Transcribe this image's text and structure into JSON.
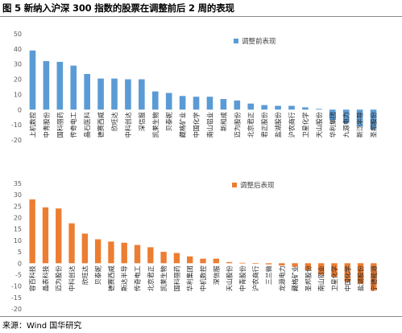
{
  "title": "图 5  新纳入沪深 300 指数的股票在调整前后 2 周的表现",
  "source": "来源：Wind  国华研究",
  "chart_data": [
    {
      "type": "bar",
      "legend": "调整前表现",
      "legend_position": "top-right",
      "color": "#5B9BD5",
      "ylim": [
        -20,
        50
      ],
      "yticks": [
        -20,
        -10,
        0,
        10,
        20,
        30,
        40,
        50
      ],
      "categories": [
        "上机数控",
        "中青股份",
        "国科丽药",
        "传奇电工",
        "晶石医科",
        "德赛西威",
        "欣旺达",
        "中科创达",
        "深信服",
        "凯莱生物",
        "贝泰妮",
        "藏格矿业",
        "中国化学",
        "南山铝业",
        "新和成",
        "迈为股份",
        "北京君正",
        "君正股份",
        "盐湖股份",
        "沪农商行",
        "卫星化学",
        "天山股份",
        "华利集团",
        "九源电力",
        "新泛半导",
        "圣邦股份"
      ],
      "values": [
        39,
        32,
        31.5,
        29,
        23.5,
        20.5,
        20.5,
        20,
        20,
        12,
        11,
        9,
        8.5,
        8.5,
        7,
        6,
        4,
        3,
        2.5,
        2.5,
        1.5,
        0.5,
        -7,
        -9,
        -11,
        -13
      ]
    },
    {
      "type": "bar",
      "legend": "调整后表现",
      "legend_position": "top-right",
      "color": "#ED7D31",
      "ylim": [
        -20,
        35
      ],
      "yticks": [
        -20,
        -15,
        -10,
        -5,
        0,
        5,
        10,
        15,
        20,
        25,
        30,
        35
      ],
      "categories": [
        "容百科技",
        "晶表科技",
        "迈为股份",
        "中科创达",
        "欣旺达",
        "贝泰妮",
        "德赛西威",
        "斯达半导",
        "传奇电工",
        "北京君正",
        "凯莱生物",
        "国科丽药",
        "华利集团",
        "中机数控",
        "深信服",
        "天山股份",
        "中青股份",
        "沪农商行",
        "三兰微",
        "龙源电力",
        "藏格矿业",
        "圣邦股份",
        "南山铝业",
        "卫星化学",
        "中国化学",
        "盐湖股份",
        "宁德能源"
      ],
      "values": [
        28,
        24.5,
        24,
        17.5,
        13,
        10.5,
        9.5,
        9,
        8,
        7,
        5,
        4.5,
        3,
        2,
        2,
        0.5,
        0.2,
        0,
        -0.5,
        -1,
        -1.5,
        -3,
        -5,
        -6,
        -8,
        -9,
        -12
      ]
    }
  ]
}
